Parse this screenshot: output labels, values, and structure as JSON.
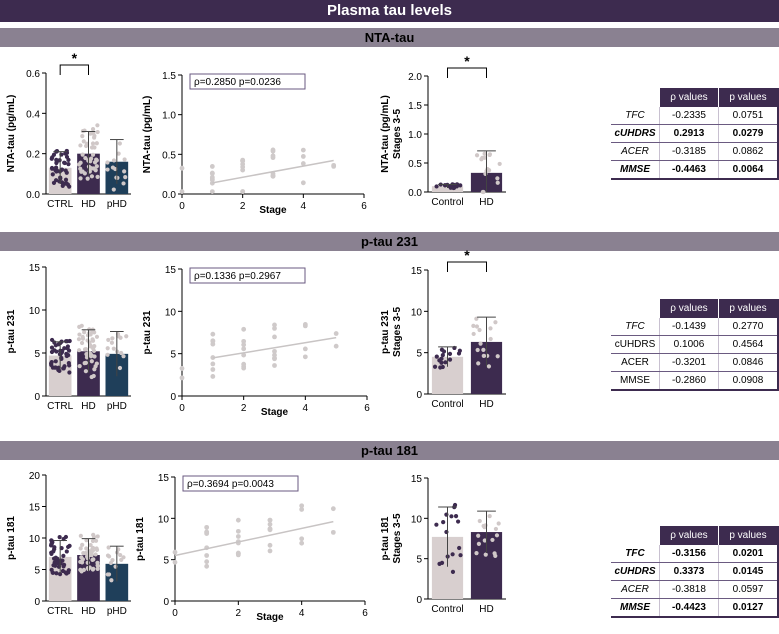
{
  "title": "Plasma tau levels",
  "colors": {
    "header": "#3d2b4f",
    "section": "#8a8191",
    "ctrl": "#d8cfcf",
    "hd": "#3d2b4f",
    "phd": "#1f3f5a",
    "dot_ctrl": "#3d2b4f",
    "dot_hd": "#d0c8c8",
    "scatter": "#cfcaca"
  },
  "sections": [
    {
      "name": "NTA-tau",
      "panels": [
        {
          "type": "bar",
          "ylabel": "NTA-tau (pg/mL)",
          "yticks": [
            "0.0",
            "0.2",
            "0.4",
            "0.6"
          ],
          "ymax": 0.6,
          "categories": [
            "CTRL",
            "HD",
            "pHD"
          ],
          "values": [
            0.13,
            0.2,
            0.16
          ],
          "sd": [
            0.08,
            0.11,
            0.11
          ],
          "sig": "*"
        },
        {
          "type": "scatter",
          "ylabel": "NTA-tau (pg/mL)",
          "xlabel": "Stage",
          "yticks": [
            "0.0",
            "0.5",
            "1.0",
            "1.5"
          ],
          "ymax": 1.6,
          "xticks": [
            "0",
            "2",
            "4",
            "6"
          ],
          "annotation": "ρ=0.2850 p=0.0236",
          "line": [
            [
              1,
              0.15
            ],
            [
              5,
              0.45
            ]
          ]
        },
        {
          "type": "bar",
          "ylabel": "NTA-tau (pg/mL)",
          "ylabel2": "Stages 3-5",
          "yticks": [
            "0.0",
            "0.5",
            "1.0",
            "1.5",
            "2.0"
          ],
          "ymax": 2.0,
          "categories": [
            "Control",
            "HD"
          ],
          "values": [
            0.1,
            0.33
          ],
          "sd": [
            0.03,
            0.38
          ],
          "sig": "*"
        }
      ],
      "table": {
        "headers": [
          "ρ values",
          "p values"
        ],
        "rows": [
          {
            "label": "TFC",
            "rho": "-0.2335",
            "p": "0.0751",
            "italic": true,
            "bold": false
          },
          {
            "label": "cUHDRS",
            "rho": "0.2913",
            "p": "0.0279",
            "italic": true,
            "bold": true
          },
          {
            "label": "ACER",
            "rho": "-0.3185",
            "p": "0.0862",
            "italic": true,
            "bold": false
          },
          {
            "label": "MMSE",
            "rho": "-0.4463",
            "p": "0.0064",
            "italic": true,
            "bold": true
          }
        ]
      }
    },
    {
      "name": "p-tau 231",
      "panels": [
        {
          "type": "bar",
          "ylabel": "p-tau 231",
          "yticks": [
            "0",
            "5",
            "10",
            "15"
          ],
          "ymax": 15,
          "categories": [
            "CTRL",
            "HD",
            "pHD"
          ],
          "values": [
            4.7,
            5.2,
            4.9
          ],
          "sd": [
            1.6,
            2.5,
            2.6
          ],
          "sig": ""
        },
        {
          "type": "scatter",
          "ylabel": "p-tau 231",
          "xlabel": "Stage",
          "yticks": [
            "0",
            "5",
            "10",
            "15"
          ],
          "ymax": 15,
          "xticks": [
            "0",
            "2",
            "4",
            "6"
          ],
          "annotation": "ρ=0.1336 p=0.2967",
          "line": [
            [
              1,
              4.5
            ],
            [
              5,
              6.9
            ]
          ]
        },
        {
          "type": "bar",
          "ylabel": "p-tau 231",
          "ylabel2": "Stages 3-5",
          "yticks": [
            "0",
            "5",
            "10",
            "15"
          ],
          "ymax": 15,
          "categories": [
            "Control",
            "HD"
          ],
          "values": [
            4.5,
            6.3
          ],
          "sd": [
            1.2,
            3.0
          ],
          "sig": "*"
        }
      ],
      "table": {
        "headers": [
          "ρ values",
          "p values"
        ],
        "rows": [
          {
            "label": "TFC",
            "rho": "-0.1439",
            "p": "0.2770",
            "italic": true,
            "bold": false
          },
          {
            "label": "cUHDRS",
            "rho": "0.1006",
            "p": "0.4564",
            "italic": false,
            "bold": false
          },
          {
            "label": "ACER",
            "rho": "-0.3201",
            "p": "0.0846",
            "italic": false,
            "bold": false
          },
          {
            "label": "MMSE",
            "rho": "-0.2860",
            "p": "0.0908",
            "italic": false,
            "bold": false
          }
        ]
      }
    },
    {
      "name": "p-tau 181",
      "panels": [
        {
          "type": "bar",
          "ylabel": "p-tau 181",
          "yticks": [
            "0",
            "5",
            "10",
            "15",
            "20"
          ],
          "ymax": 20,
          "categories": [
            "CTRL",
            "HD",
            "pHD"
          ],
          "values": [
            7.0,
            7.3,
            5.9
          ],
          "sd": [
            2.6,
            2.6,
            2.8
          ],
          "sig": ""
        },
        {
          "type": "scatter",
          "ylabel": "p-tau 181",
          "xlabel": "Stage",
          "yticks": [
            "0",
            "5",
            "10",
            "15"
          ],
          "ymax": 15,
          "xticks": [
            "0",
            "2",
            "4",
            "6"
          ],
          "annotation": "ρ=0.3694 p=0.0043",
          "line": [
            [
              0,
              5.5
            ],
            [
              5,
              9.6
            ]
          ]
        },
        {
          "type": "bar",
          "ylabel": "p-tau 181",
          "ylabel2": "Stages 3-5",
          "yticks": [
            "0",
            "5",
            "10",
            "15"
          ],
          "ymax": 15,
          "categories": [
            "Control",
            "HD"
          ],
          "values": [
            7.7,
            8.3
          ],
          "sd": [
            3.7,
            2.6
          ],
          "sig": ""
        }
      ],
      "table": {
        "headers": [
          "ρ values",
          "p values"
        ],
        "rows": [
          {
            "label": "TFC",
            "rho": "-0.3156",
            "p": "0.0201",
            "italic": true,
            "bold": true
          },
          {
            "label": "cUHDRS",
            "rho": "0.3373",
            "p": "0.0145",
            "italic": true,
            "bold": true
          },
          {
            "label": "ACER",
            "rho": "-0.3818",
            "p": "0.0597",
            "italic": true,
            "bold": false
          },
          {
            "label": "MMSE",
            "rho": "-0.4423",
            "p": "0.0127",
            "italic": true,
            "bold": true
          }
        ]
      }
    }
  ],
  "chart_data": [
    {
      "type": "bar",
      "title": "NTA-tau",
      "ylabel": "NTA-tau (pg/mL)",
      "categories": [
        "CTRL",
        "HD",
        "pHD"
      ],
      "values": [
        0.13,
        0.2,
        0.16
      ],
      "ylim": [
        0,
        0.6
      ]
    },
    {
      "type": "scatter",
      "title": "NTA-tau",
      "xlabel": "Stage",
      "ylabel": "NTA-tau (pg/mL)",
      "annotation": "ρ=0.2850 p=0.0236",
      "ylim": [
        0,
        1.6
      ],
      "xlim": [
        0,
        6
      ]
    },
    {
      "type": "bar",
      "title": "NTA-tau",
      "ylabel": "NTA-tau (pg/mL) Stages 3-5",
      "categories": [
        "Control",
        "HD"
      ],
      "values": [
        0.1,
        0.33
      ],
      "ylim": [
        0,
        2.0
      ]
    },
    {
      "type": "bar",
      "title": "p-tau 231",
      "ylabel": "p-tau 231",
      "categories": [
        "CTRL",
        "HD",
        "pHD"
      ],
      "values": [
        4.7,
        5.2,
        4.9
      ],
      "ylim": [
        0,
        15
      ]
    },
    {
      "type": "scatter",
      "title": "p-tau 231",
      "xlabel": "Stage",
      "ylabel": "p-tau 231",
      "annotation": "ρ=0.1336 p=0.2967",
      "ylim": [
        0,
        15
      ],
      "xlim": [
        0,
        6
      ]
    },
    {
      "type": "bar",
      "title": "p-tau 231",
      "ylabel": "p-tau 231 Stages 3-5",
      "categories": [
        "Control",
        "HD"
      ],
      "values": [
        4.5,
        6.3
      ],
      "ylim": [
        0,
        15
      ]
    },
    {
      "type": "bar",
      "title": "p-tau 181",
      "ylabel": "p-tau 181",
      "categories": [
        "CTRL",
        "HD",
        "pHD"
      ],
      "values": [
        7.0,
        7.3,
        5.9
      ],
      "ylim": [
        0,
        20
      ]
    },
    {
      "type": "scatter",
      "title": "p-tau 181",
      "xlabel": "Stage",
      "ylabel": "p-tau 181",
      "annotation": "ρ=0.3694 p=0.0043",
      "ylim": [
        0,
        15
      ],
      "xlim": [
        0,
        6
      ]
    },
    {
      "type": "bar",
      "title": "p-tau 181",
      "ylabel": "p-tau 181 Stages 3-5",
      "categories": [
        "Control",
        "HD"
      ],
      "values": [
        7.7,
        8.3
      ],
      "ylim": [
        0,
        15
      ]
    }
  ]
}
